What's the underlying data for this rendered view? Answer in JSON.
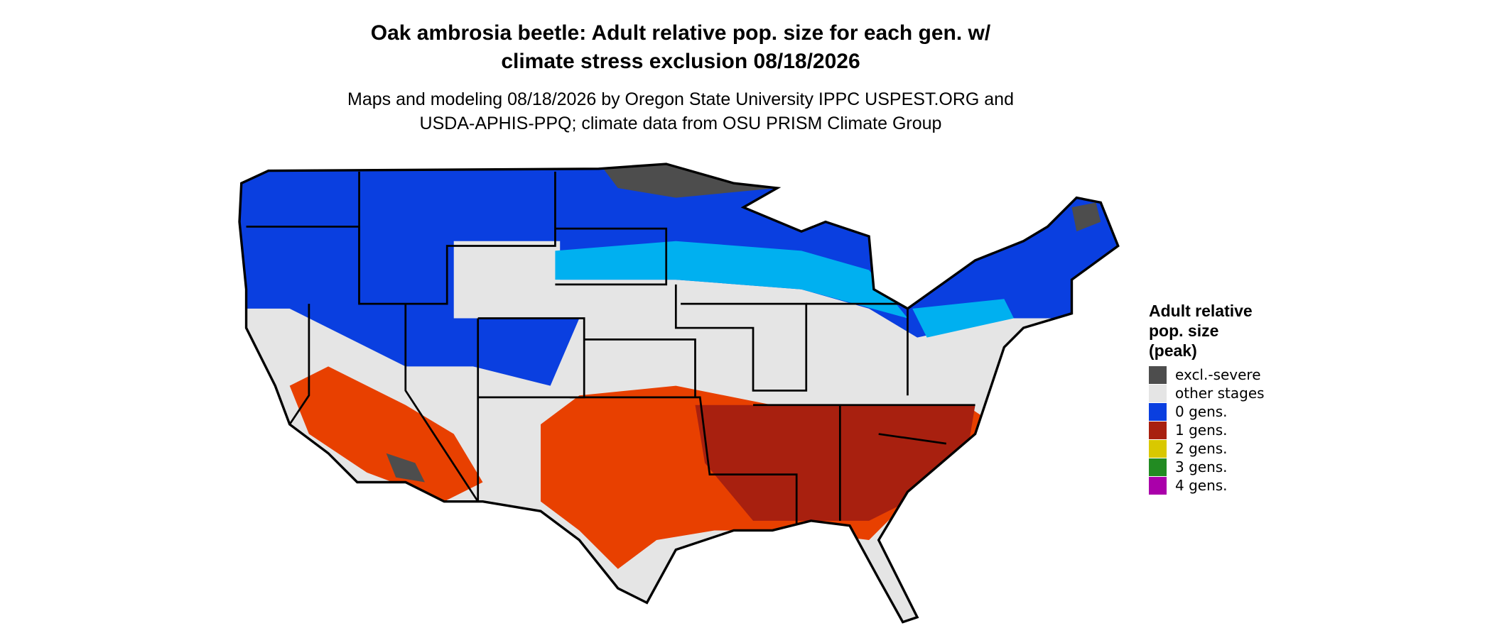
{
  "title": [
    "Oak ambrosia beetle: Adult relative pop. size for each gen. w/",
    "climate stress exclusion 08/18/2026"
  ],
  "subtitle": [
    "Maps and modeling 08/18/2026 by Oregon State University IPPC USPEST.ORG and",
    "USDA-APHIS-PPQ; climate data from OSU PRISM Climate Group"
  ],
  "legend": {
    "title": [
      "Adult relative",
      "pop. size",
      "(peak)"
    ],
    "items": [
      {
        "label": "excl.-severe",
        "color": "#4d4d4d"
      },
      {
        "label": "other stages",
        "color": "#e5e5e5"
      },
      {
        "label": "0 gens.",
        "color": "#0a3fe0"
      },
      {
        "label": "1 gens.",
        "color": "#a8200f"
      },
      {
        "label": "2 gens.",
        "color": "#d9c800"
      },
      {
        "label": "3 gens.",
        "color": "#228b22"
      },
      {
        "label": "4 gens.",
        "color": "#aa00aa"
      }
    ]
  }
}
